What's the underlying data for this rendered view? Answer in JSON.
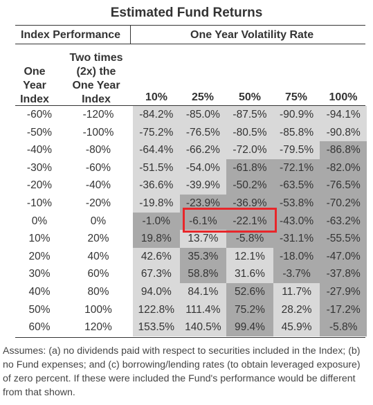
{
  "title": "Estimated Fund Returns",
  "header": {
    "left": "Index Performance",
    "right": "One Year Volatility Rate"
  },
  "subheaders": {
    "col1": [
      "One",
      "Year",
      "Index"
    ],
    "col2": [
      "Two times",
      "(2x) the",
      "One Year",
      "Index"
    ]
  },
  "volatility_columns": [
    "10%",
    "25%",
    "50%",
    "75%",
    "100%"
  ],
  "rows": [
    {
      "index": "-60%",
      "two_x": "-120%",
      "values": [
        "-84.2%",
        "-85.0%",
        "-87.5%",
        "-90.9%",
        "-94.1%"
      ]
    },
    {
      "index": "-50%",
      "two_x": "-100%",
      "values": [
        "-75.2%",
        "-76.5%",
        "-80.5%",
        "-85.8%",
        "-90.8%"
      ]
    },
    {
      "index": "-40%",
      "two_x": "-80%",
      "values": [
        "-64.4%",
        "-66.2%",
        "-72.0%",
        "-79.5%",
        "-86.8%"
      ]
    },
    {
      "index": "-30%",
      "two_x": "-60%",
      "values": [
        "-51.5%",
        "-54.0%",
        "-61.8%",
        "-72.1%",
        "-82.0%"
      ]
    },
    {
      "index": "-20%",
      "two_x": "-40%",
      "values": [
        "-36.6%",
        "-39.9%",
        "-50.2%",
        "-63.5%",
        "-76.5%"
      ]
    },
    {
      "index": "-10%",
      "two_x": "-20%",
      "values": [
        "-19.8%",
        "-23.9%",
        "-36.9%",
        "-53.8%",
        "-70.2%"
      ]
    },
    {
      "index": "0%",
      "two_x": "0%",
      "values": [
        "-1.0%",
        "-6.1%",
        "-22.1%",
        "-43.0%",
        "-63.2%"
      ]
    },
    {
      "index": "10%",
      "two_x": "20%",
      "values": [
        "19.8%",
        "13.7%",
        "-5.8%",
        "-31.1%",
        "-55.5%"
      ]
    },
    {
      "index": "20%",
      "two_x": "40%",
      "values": [
        "42.6%",
        "35.3%",
        "12.1%",
        "-18.0%",
        "-47.0%"
      ]
    },
    {
      "index": "30%",
      "two_x": "60%",
      "values": [
        "67.3%",
        "58.8%",
        "31.6%",
        "-3.7%",
        "-37.8%"
      ]
    },
    {
      "index": "40%",
      "two_x": "80%",
      "values": [
        "94.0%",
        "84.1%",
        "52.6%",
        "11.7%",
        "-27.9%"
      ]
    },
    {
      "index": "50%",
      "two_x": "100%",
      "values": [
        "122.8%",
        "111.4%",
        "75.2%",
        "28.2%",
        "-17.2%"
      ]
    },
    {
      "index": "60%",
      "two_x": "120%",
      "values": [
        "153.5%",
        "140.5%",
        "99.4%",
        "45.9%",
        "-5.8%"
      ]
    }
  ],
  "shading": [
    [
      "light",
      "light",
      "light",
      "light",
      "light"
    ],
    [
      "light",
      "light",
      "light",
      "light",
      "light"
    ],
    [
      "light",
      "light",
      "light",
      "light",
      "dark"
    ],
    [
      "light",
      "light",
      "dark",
      "dark",
      "dark"
    ],
    [
      "light",
      "light",
      "dark",
      "dark",
      "dark"
    ],
    [
      "light",
      "dark",
      "dark",
      "dark",
      "dark"
    ],
    [
      "dark",
      "dark",
      "dark",
      "dark",
      "dark"
    ],
    [
      "dark",
      "light",
      "dark",
      "dark",
      "dark"
    ],
    [
      "light",
      "dark",
      "light",
      "dark",
      "dark"
    ],
    [
      "light",
      "dark",
      "light",
      "dark",
      "dark"
    ],
    [
      "light",
      "light",
      "dark",
      "light",
      "dark"
    ],
    [
      "light",
      "light",
      "dark",
      "light",
      "dark"
    ],
    [
      "light",
      "light",
      "dark",
      "light",
      "dark"
    ]
  ],
  "colors": {
    "light": "#d9d9d9",
    "dark": "#a9a9a9",
    "highlight": "#e8262a"
  },
  "footnote": "Assumes: (a) no dividends paid with respect to securities included in the Index; (b) no Fund expenses; and (c) borrowing/lending rates (to obtain leveraged exposure) of zero percent. If these were included the Fund's performance would be different from that shown."
}
